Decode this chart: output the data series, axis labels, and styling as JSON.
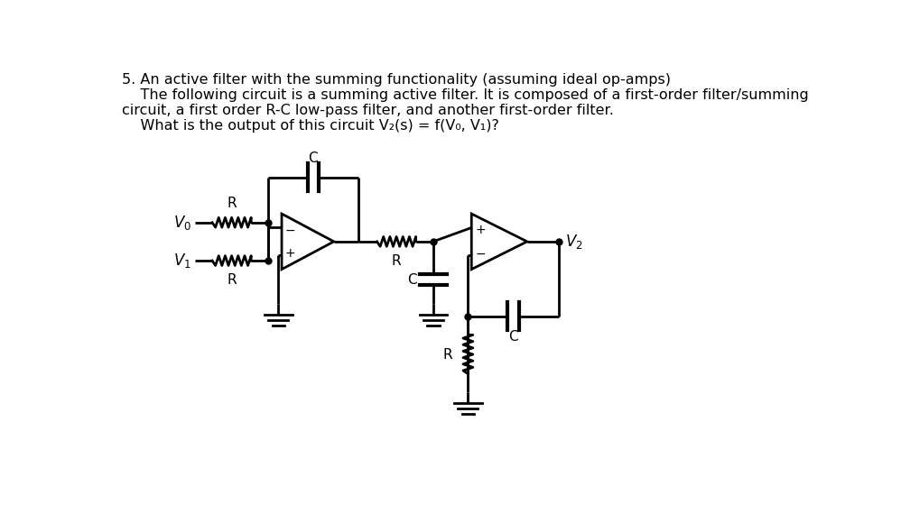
{
  "title_line1": "5. An active filter with the summing functionality (assuming ideal op-amps)",
  "title_line2": "    The following circuit is a summing active filter. It is composed of a first-order filter/summing",
  "title_line3": "circuit, a first order R-C low-pass filter, and another first-order filter.",
  "title_line4": "    What is the output of this circuit V₂(s) = f(V₀, V₁)?",
  "bg_color": "#ffffff",
  "line_color": "#000000",
  "text_color": "#000000",
  "font_size_text": 11.5,
  "fig_width": 9.98,
  "fig_height": 5.8
}
